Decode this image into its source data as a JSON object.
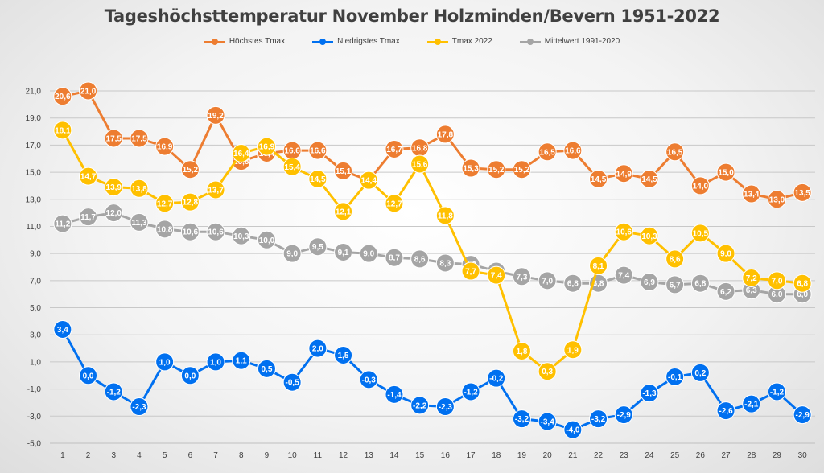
{
  "chart_data": {
    "type": "line",
    "title": "Tageshöchsttemperatur November Holzminden/Bevern 1951-2022",
    "xlabel": "",
    "ylabel": "",
    "ylim": [
      -5,
      21
    ],
    "yticks": [
      "21,0",
      "19,0",
      "17,0",
      "15,0",
      "13,0",
      "11,0",
      "9,0",
      "7,0",
      "5,0",
      "3,0",
      "1,0",
      "-1,0",
      "-3,0",
      "-5,0"
    ],
    "categories": [
      "1",
      "2",
      "3",
      "4",
      "5",
      "6",
      "7",
      "8",
      "9",
      "10",
      "11",
      "12",
      "13",
      "14",
      "15",
      "16",
      "17",
      "18",
      "19",
      "20",
      "21",
      "22",
      "23",
      "24",
      "25",
      "26",
      "27",
      "28",
      "29",
      "30"
    ],
    "grid": true,
    "legend_position": "top",
    "series": [
      {
        "name": "Höchstes Tmax",
        "color": "#ed7d31",
        "values": [
          20.6,
          21.0,
          17.5,
          17.5,
          16.9,
          15.2,
          19.2,
          15.8,
          16.4,
          16.6,
          16.6,
          15.1,
          14.4,
          16.7,
          16.8,
          17.8,
          15.3,
          15.2,
          15.2,
          16.5,
          16.6,
          14.5,
          14.9,
          14.5,
          16.5,
          14.0,
          15.0,
          13.4,
          13.0,
          13.5
        ],
        "labels": [
          "20,6",
          "21,0",
          "17,5",
          "17,5",
          "16,9",
          "15,2",
          "19,2",
          "15,8",
          "16,4",
          "16,6",
          "16,6",
          "15,1",
          "14,4",
          "16,7",
          "16,8",
          "17,8",
          "15,3",
          "15,2",
          "15,2",
          "16,5",
          "16,6",
          "14,5",
          "14,9",
          "14,5",
          "16,5",
          "14,0",
          "15,0",
          "13,4",
          "13,0",
          "13,5"
        ]
      },
      {
        "name": "Niedrigstes Tmax",
        "color": "#0070f0",
        "values": [
          3.4,
          0.0,
          -1.2,
          -2.3,
          1.0,
          0.0,
          1.0,
          1.1,
          0.5,
          -0.5,
          2.0,
          1.5,
          -0.3,
          -1.4,
          -2.2,
          -2.3,
          -1.2,
          -0.2,
          -3.2,
          -3.4,
          -4.0,
          -3.2,
          -2.9,
          -1.3,
          -0.1,
          0.2,
          -2.6,
          -2.1,
          -1.2,
          -2.9
        ],
        "labels": [
          "3,4",
          "0,0",
          "-1,2",
          "-2,3",
          "1,0",
          "0,0",
          "1,0",
          "1,1",
          "0,5",
          "-0,5",
          "2,0",
          "1,5",
          "-0,3",
          "-1,4",
          "-2,2",
          "-2,3",
          "-1,2",
          "-0,2",
          "-3,2",
          "-3,4",
          "-4,0",
          "-3,2",
          "-2,9",
          "-1,3",
          "-0,1",
          "0,2",
          "-2,6",
          "-2,1",
          "-1,2",
          "-2,9"
        ]
      },
      {
        "name": "Tmax 2022",
        "color": "#ffc000",
        "values": [
          18.1,
          14.7,
          13.9,
          13.8,
          12.7,
          12.8,
          13.7,
          16.4,
          16.9,
          15.4,
          14.5,
          12.1,
          14.4,
          12.7,
          15.6,
          11.8,
          7.7,
          7.4,
          1.8,
          0.3,
          1.9,
          8.1,
          10.6,
          10.3,
          8.6,
          10.5,
          9.0,
          7.2,
          7.0,
          6.8
        ],
        "labels": [
          "18,1",
          "14,7",
          "13,9",
          "13,8",
          "12,7",
          "12,8",
          "13,7",
          "16,4",
          "16,9",
          "15,4",
          "14,5",
          "12,1",
          "14,4",
          "12,7",
          "15,6",
          "11,8",
          "7,7",
          "7,4",
          "1,8",
          "0,3",
          "1,9",
          "8,1",
          "10,6",
          "10,3",
          "8,6",
          "10,5",
          "9,0",
          "7,2",
          "7,0",
          "6,8"
        ]
      },
      {
        "name": "Mittelwert 1991-2020",
        "color": "#a5a5a5",
        "values": [
          11.2,
          11.7,
          12.0,
          11.3,
          10.8,
          10.6,
          10.6,
          10.3,
          10.0,
          9.0,
          9.5,
          9.1,
          9.0,
          8.7,
          8.6,
          8.3,
          8.2,
          7.7,
          7.3,
          7.0,
          6.8,
          6.8,
          7.4,
          6.9,
          6.7,
          6.8,
          6.2,
          6.3,
          6.0,
          6.0
        ],
        "labels": [
          "11,2",
          "11,7",
          "12,0",
          "11,3",
          "10,8",
          "10,6",
          "10,6",
          "10,3",
          "10,0",
          "9,0",
          "9,5",
          "9,1",
          "9,0",
          "8,7",
          "8,6",
          "8,3",
          "8,2",
          "7,7",
          "7,3",
          "7,0",
          "6,8",
          "6,8",
          "7,4",
          "6,9",
          "6,7",
          "6,8",
          "6,2",
          "6,3",
          "6,0",
          "6,0"
        ]
      }
    ]
  }
}
